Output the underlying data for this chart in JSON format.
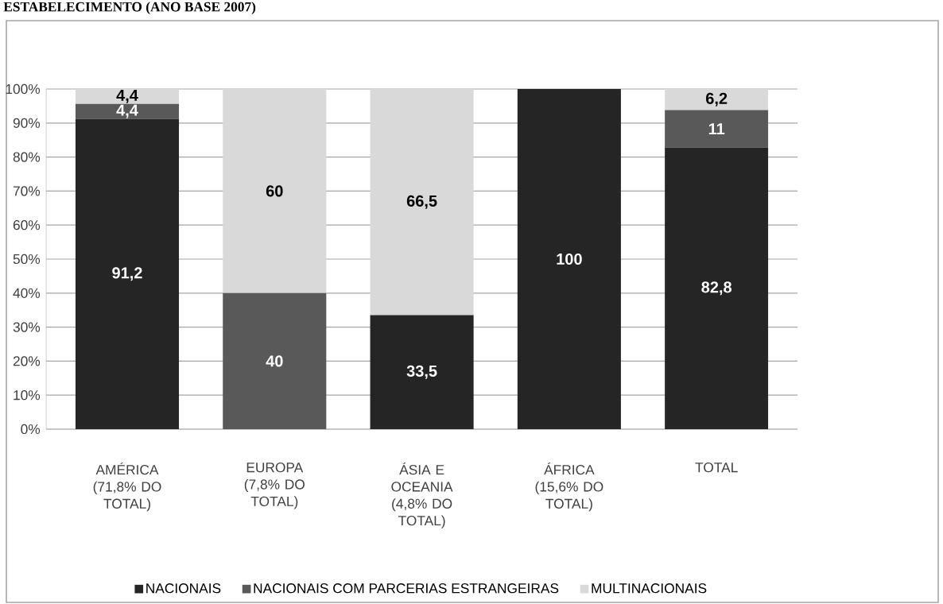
{
  "chart_data": {
    "type": "bar",
    "title": "ESTABELECIMENTO (ANO BASE 2007)",
    "stacked": true,
    "categories": [
      "AMÉRICA (71,8% DO TOTAL)",
      "EUROPA (7,8% DO TOTAL)",
      "ÁSIA E OCEANIA (4,8% DO TOTAL)",
      "ÁFRICA (15,6% DO TOTAL)",
      "TOTAL"
    ],
    "series": [
      {
        "name": "NACIONAIS",
        "color": "#252525",
        "values": [
          91.2,
          0,
          33.5,
          100,
          82.8
        ],
        "value_labels": [
          "91,2",
          null,
          "33,5",
          "100",
          "82,8"
        ]
      },
      {
        "name": "NACIONAIS COM PARCERIAS ESTRANGEIRAS",
        "color": "#595959",
        "values": [
          4.4,
          40,
          0,
          0,
          11
        ],
        "value_labels": [
          "4,4",
          "40",
          null,
          null,
          "11"
        ]
      },
      {
        "name": "MULTINACIONAIS",
        "color": "#d9d9d9",
        "values": [
          4.4,
          60,
          66.5,
          0,
          6.2
        ],
        "value_labels": [
          "4,4",
          "60",
          "66,5",
          null,
          "6,2"
        ]
      }
    ],
    "ylim": [
      0,
      100
    ],
    "yticks": [
      {
        "value": 0,
        "label": "0%"
      },
      {
        "value": 10,
        "label": "10%"
      },
      {
        "value": 20,
        "label": "20%"
      },
      {
        "value": 30,
        "label": "30%"
      },
      {
        "value": 40,
        "label": "40%"
      },
      {
        "value": 50,
        "label": "50%"
      },
      {
        "value": 60,
        "label": "60%"
      },
      {
        "value": 70,
        "label": "70%"
      },
      {
        "value": 80,
        "label": "80%"
      },
      {
        "value": 90,
        "label": "90%"
      },
      {
        "value": 100,
        "label": "100%"
      }
    ],
    "grid": "y",
    "legend": "bottom"
  }
}
